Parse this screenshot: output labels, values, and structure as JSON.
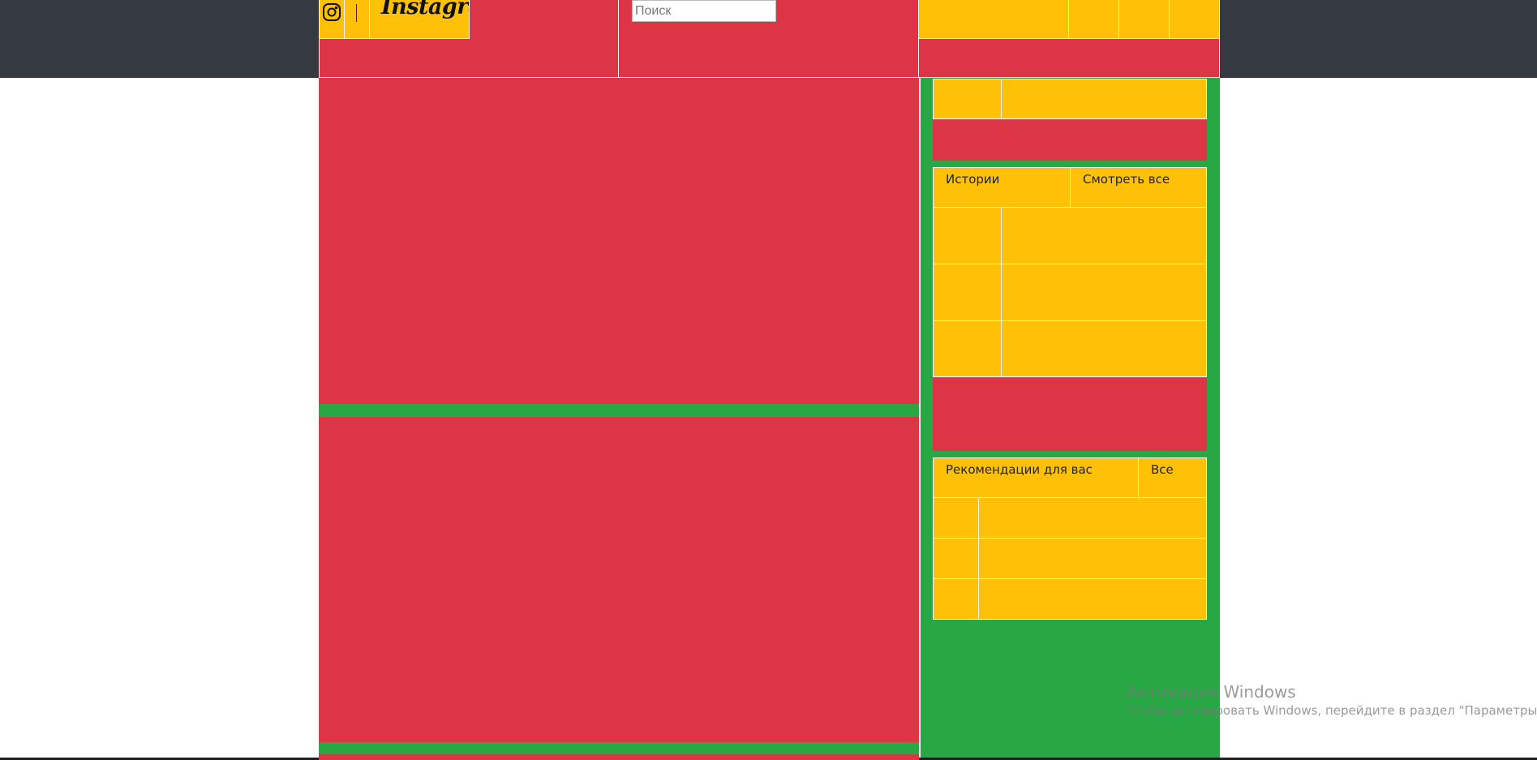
{
  "header": {
    "logo_text": "Instagram",
    "search": {
      "placeholder": "Поиск",
      "value": ""
    }
  },
  "sidebar": {
    "stories": {
      "title": "Истории",
      "view_all": "Смотреть все"
    },
    "recommendations": {
      "title": "Рекомендации для вас",
      "all": "Все"
    }
  },
  "watermark": {
    "title": "Активация Windows",
    "subtitle": "Чтобы активировать Windows, перейдите в раздел \"Параметры\"."
  },
  "colors": {
    "navbar": "#343a40",
    "red": "#dc3545",
    "yellow": "#ffc107",
    "green": "#28a745"
  }
}
